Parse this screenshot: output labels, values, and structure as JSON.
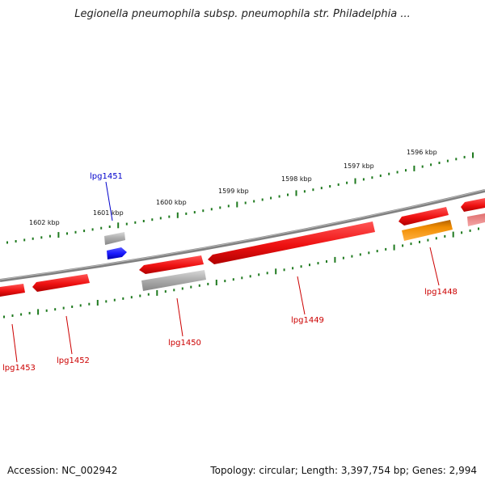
{
  "title": "Legionella pneumophila subsp. pneumophila str. Philadelphia ...",
  "footer": {
    "accession": "Accession: NC_002942",
    "summary": "Topology: circular; Length: 3,397,754 bp; Genes: 2,994"
  },
  "colors": {
    "backbone": "#7a7a7a",
    "tick": "#1f7a1f",
    "gene_red": "#ee1111",
    "gene_grey": "#aaaaaa",
    "gene_blue": "#1a1aff",
    "gene_orange": "#f08c00",
    "gene_pink": "#f08a8a",
    "label_red": "#cc0000",
    "label_blue": "#0000cc"
  },
  "scale_labels": [
    "1602 kbp",
    "1601 kbp",
    "1600 kbp",
    "1599 kbp",
    "1598 kbp",
    "1597 kbp",
    "1596 kbp"
  ],
  "genes": [
    {
      "label": "lpg1453",
      "color": "gene_red"
    },
    {
      "label": "lpg1452",
      "color": "gene_red"
    },
    {
      "label": "lpg1451",
      "color": "gene_blue"
    },
    {
      "label": "lpg1450",
      "color": "gene_red"
    },
    {
      "label": "lpg1449",
      "color": "gene_red"
    },
    {
      "label": "lpg1448",
      "color": "gene_orange"
    }
  ]
}
